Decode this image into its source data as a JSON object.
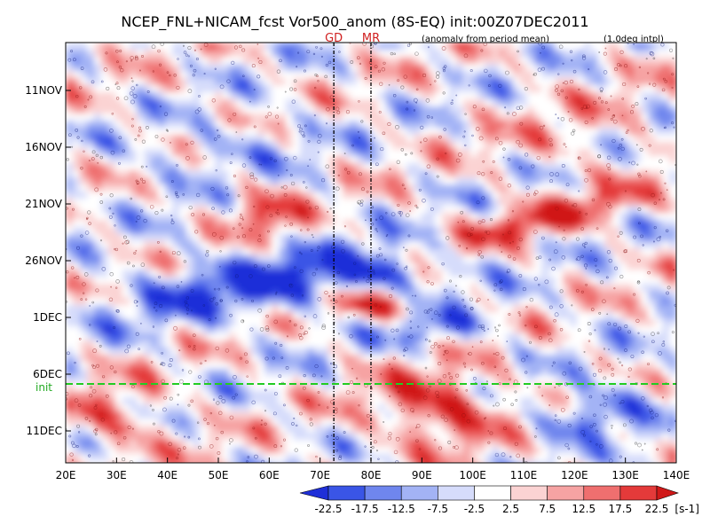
{
  "chart_data": {
    "type": "heatmap",
    "title": "NCEP_FNL+NICAM_fcst Vor500_anom (8S-EQ) init:00Z07DEC2011",
    "subtitle_left": "(anomaly from period mean)",
    "subtitle_right": "(1.0deg intpl)",
    "x_label": "",
    "y_label": "",
    "x_range": [
      20,
      140
    ],
    "x_ticks": [
      "20E",
      "30E",
      "40E",
      "50E",
      "60E",
      "70E",
      "80E",
      "90E",
      "100E",
      "110E",
      "120E",
      "130E",
      "140E"
    ],
    "y_ticks": [
      "11NOV",
      "16NOV",
      "21NOV",
      "26NOV",
      "1DEC",
      "6DEC",
      "11DEC"
    ],
    "markers": [
      {
        "label": "GD",
        "lon": 72.7
      },
      {
        "label": "MR",
        "lon": 80.0
      }
    ],
    "init_label": "init",
    "init_date": "07DEC",
    "colorbar": {
      "unit": "[s-1]",
      "levels": [
        "-22.5",
        "-17.5",
        "-12.5",
        "-7.5",
        "-2.5",
        "2.5",
        "7.5",
        "12.5",
        "17.5",
        "22.5"
      ],
      "colors": [
        "#1f2fd8",
        "#3a55e6",
        "#6f86ee",
        "#a3b3f5",
        "#d6dcfb",
        "#ffffff",
        "#fbd3d3",
        "#f6a3a3",
        "#ef6f6f",
        "#e43a3a",
        "#d01818"
      ]
    },
    "features": [
      {
        "type": "negative anomaly band",
        "from": "26NOV",
        "to": "1DEC",
        "lon_range": [
          40,
          90
        ]
      },
      {
        "type": "positive anomaly",
        "date": "1DEC",
        "lon_range": [
          72,
          84
        ]
      },
      {
        "type": "positive anomaly",
        "date": "21NOV",
        "lon_range": [
          110,
          135
        ]
      },
      {
        "type": "positive anomaly (forecast)",
        "date": "9DEC",
        "lon_range": [
          82,
          100
        ]
      },
      {
        "type": "negative anomaly (forecast)",
        "date": "10DEC",
        "lon_range": [
          115,
          135
        ]
      }
    ]
  }
}
